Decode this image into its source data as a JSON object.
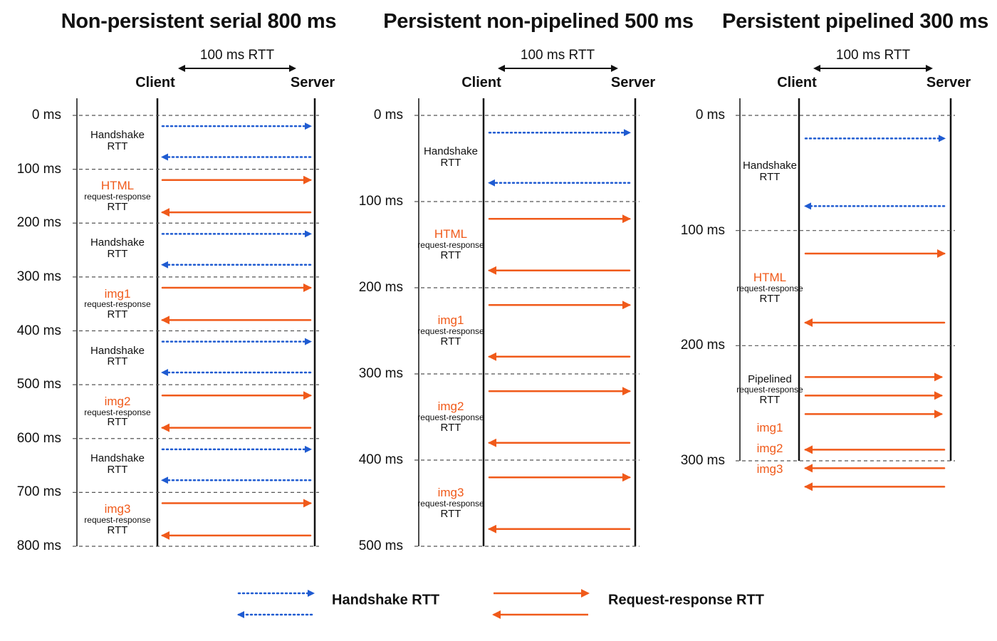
{
  "colors": {
    "handshake": "#1f5bd1",
    "request": "#f05a1a",
    "line": "#111111",
    "grid": "#555555"
  },
  "panels": [
    {
      "title": "Non-persistent serial 800 ms",
      "rtt_label": "100 ms RTT",
      "client_label": "Client",
      "server_label": "Server",
      "ticks": [
        "0 ms",
        "100 ms",
        "200 ms",
        "300 ms",
        "400 ms",
        "500 ms",
        "600 ms",
        "700 ms",
        "800 ms"
      ],
      "segments": [
        {
          "kind": "handshake",
          "main": "Handshake",
          "sub": "",
          "rtt": "RTT"
        },
        {
          "kind": "request",
          "main": "HTML",
          "sub": "request-response",
          "rtt": "RTT"
        },
        {
          "kind": "handshake",
          "main": "Handshake",
          "sub": "",
          "rtt": "RTT"
        },
        {
          "kind": "request",
          "main": "img1",
          "sub": "request-response",
          "rtt": "RTT"
        },
        {
          "kind": "handshake",
          "main": "Handshake",
          "sub": "",
          "rtt": "RTT"
        },
        {
          "kind": "request",
          "main": "img2",
          "sub": "request-response",
          "rtt": "RTT"
        },
        {
          "kind": "handshake",
          "main": "Handshake",
          "sub": "",
          "rtt": "RTT"
        },
        {
          "kind": "request",
          "main": "img3",
          "sub": "request-response",
          "rtt": "RTT"
        }
      ]
    },
    {
      "title": "Persistent non-pipelined 500 ms",
      "rtt_label": "100 ms RTT",
      "client_label": "Client",
      "server_label": "Server",
      "ticks": [
        "0 ms",
        "100 ms",
        "200 ms",
        "300 ms",
        "400 ms",
        "500 ms"
      ],
      "segments": [
        {
          "kind": "handshake",
          "main": "Handshake",
          "sub": "",
          "rtt": "RTT"
        },
        {
          "kind": "request",
          "main": "HTML",
          "sub": "request-response",
          "rtt": "RTT"
        },
        {
          "kind": "request",
          "main": "img1",
          "sub": "request-response",
          "rtt": "RTT"
        },
        {
          "kind": "request",
          "main": "img2",
          "sub": "request-response",
          "rtt": "RTT"
        },
        {
          "kind": "request",
          "main": "img3",
          "sub": "request-response",
          "rtt": "RTT"
        }
      ]
    },
    {
      "title": "Persistent pipelined 300 ms",
      "rtt_label": "100 ms RTT",
      "client_label": "Client",
      "server_label": "Server",
      "ticks": [
        "0 ms",
        "100 ms",
        "200 ms",
        "300 ms"
      ],
      "segments": [
        {
          "kind": "handshake",
          "main": "Handshake",
          "sub": "",
          "rtt": "RTT"
        },
        {
          "kind": "request",
          "main": "HTML",
          "sub": "request-response",
          "rtt": "RTT"
        },
        {
          "kind": "pipelined",
          "main": "Pipelined",
          "sub": "request-response",
          "rtt": "RTT",
          "items": [
            "img1",
            "img2",
            "img3"
          ]
        }
      ]
    }
  ],
  "legend": {
    "handshake_label": "Handshake RTT",
    "request_label": "Request-response RTT"
  }
}
